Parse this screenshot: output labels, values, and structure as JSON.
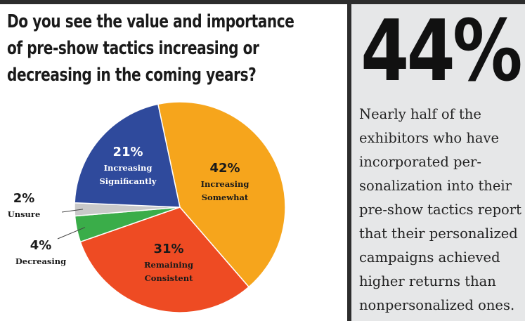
{
  "question": "Do you see the value and importance of pre-show tactics increasing or decreasing in the coming years?",
  "stat": {
    "value": "44%",
    "lines": [
      "Nearly half of the",
      "exhibitors who have",
      "incorporated per-",
      "sonalization into their",
      "pre-show tactics report",
      "that their personalized",
      "campaigns achieved",
      "higher returns than",
      "nonpersonalized ones."
    ]
  },
  "chart_data": {
    "type": "pie",
    "slices": [
      {
        "label": "Increasing Somewhat",
        "label_lines": [
          "Increasing",
          "Somewhat"
        ],
        "value": 42,
        "pct_label": "42%",
        "color": "#f6a51c",
        "label_color": "#1a1a1a"
      },
      {
        "label": "Remaining Consistent",
        "label_lines": [
          "Remaining",
          "Consistent"
        ],
        "value": 31,
        "pct_label": "31%",
        "color": "#ee4b23",
        "label_color": "#1a1a1a"
      },
      {
        "label": "Decreasing",
        "label_lines": [
          "Decreasing"
        ],
        "value": 4,
        "pct_label": "4%",
        "color": "#3aad49",
        "label_color": "#1a1a1a"
      },
      {
        "label": "Unsure",
        "label_lines": [
          "Unsure"
        ],
        "value": 2,
        "pct_label": "2%",
        "color": "#c9c9c9",
        "label_color": "#1a1a1a"
      },
      {
        "label": "Increasing Significantly",
        "label_lines": [
          "Increasing",
          "Significantly"
        ],
        "value": 21,
        "pct_label": "21%",
        "color": "#2f4a9c",
        "label_color": "#ffffff"
      }
    ]
  }
}
